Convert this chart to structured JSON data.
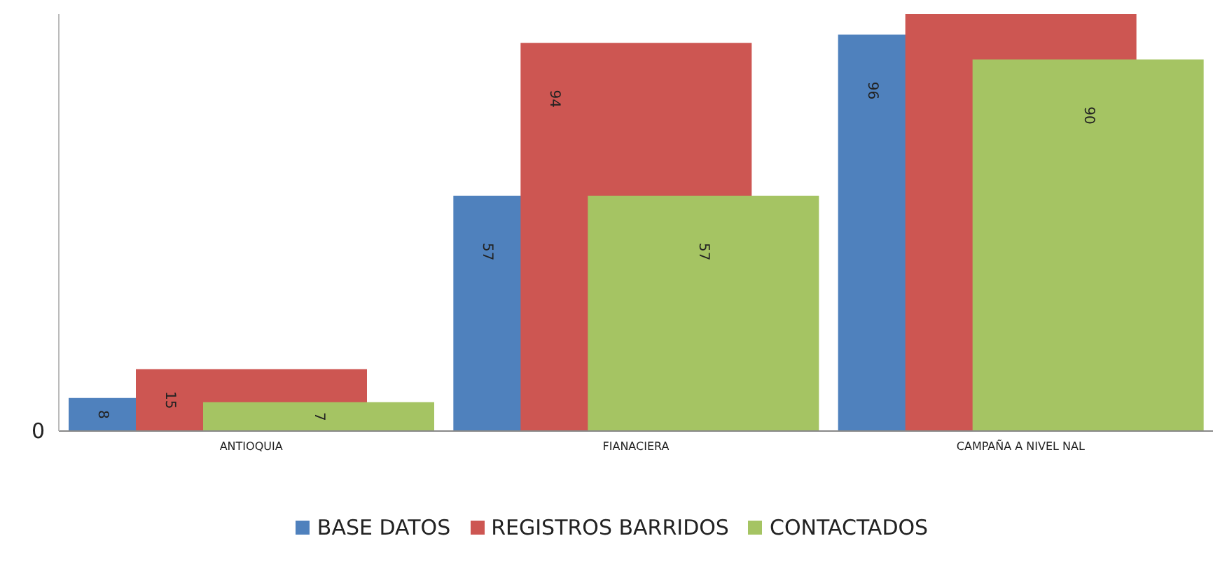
{
  "chart_data": {
    "type": "bar",
    "categories": [
      "ANTIOQUIA",
      "FIANACIERA",
      "CAMPAÑA A NIVEL NAL"
    ],
    "series": [
      {
        "name": "BASE DATOS",
        "color": "#4f81bd",
        "values": [
          8,
          57,
          96
        ],
        "value_labels": [
          "8",
          "57",
          "96"
        ]
      },
      {
        "name": "REGISTROS BARRIDOS",
        "color": "#cd5652",
        "values": [
          15,
          94,
          101
        ],
        "value_labels": [
          "15",
          "94",
          null
        ]
      },
      {
        "name": "CONTACTADOS",
        "color": "#a5c463",
        "values": [
          7,
          57,
          90
        ],
        "value_labels": [
          "7",
          "57",
          "90"
        ]
      }
    ],
    "ylim": [
      0,
      101
    ],
    "annotations": [
      "0"
    ],
    "legend": "bottom"
  }
}
